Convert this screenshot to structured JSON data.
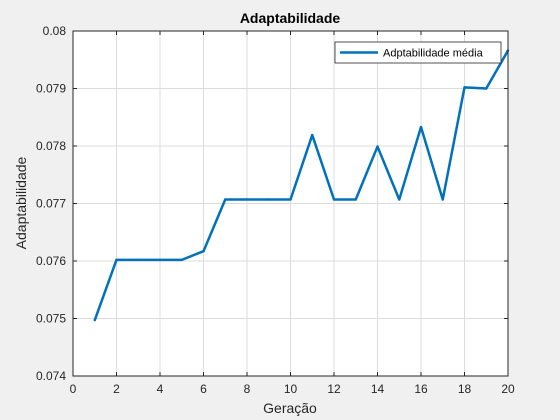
{
  "chart_data": {
    "type": "line",
    "title": "Adaptabilidade",
    "xlabel": "Geração",
    "ylabel": "Adaptabilidade",
    "xlim": [
      0,
      20
    ],
    "ylim": [
      0.074,
      0.08
    ],
    "xticks": [
      "0",
      "2",
      "4",
      "6",
      "8",
      "10",
      "12",
      "14",
      "16",
      "18",
      "20"
    ],
    "yticks": [
      "0.074",
      "0.075",
      "0.076",
      "0.077",
      "0.078",
      "0.079",
      "0.08"
    ],
    "grid": true,
    "legend_position": "top-right",
    "series": [
      {
        "name": "Adptabilidade média",
        "color": "#0072bd",
        "x": [
          1,
          2,
          3,
          4,
          5,
          6,
          7,
          8,
          9,
          10,
          11,
          12,
          13,
          14,
          15,
          16,
          17,
          18,
          19,
          20
        ],
        "y": [
          0.07497,
          0.07602,
          0.07602,
          0.07602,
          0.07602,
          0.07617,
          0.07707,
          0.07707,
          0.07707,
          0.07707,
          0.07819,
          0.07707,
          0.07707,
          0.07799,
          0.07707,
          0.07833,
          0.07707,
          0.07902,
          0.079,
          0.07966
        ]
      }
    ]
  }
}
